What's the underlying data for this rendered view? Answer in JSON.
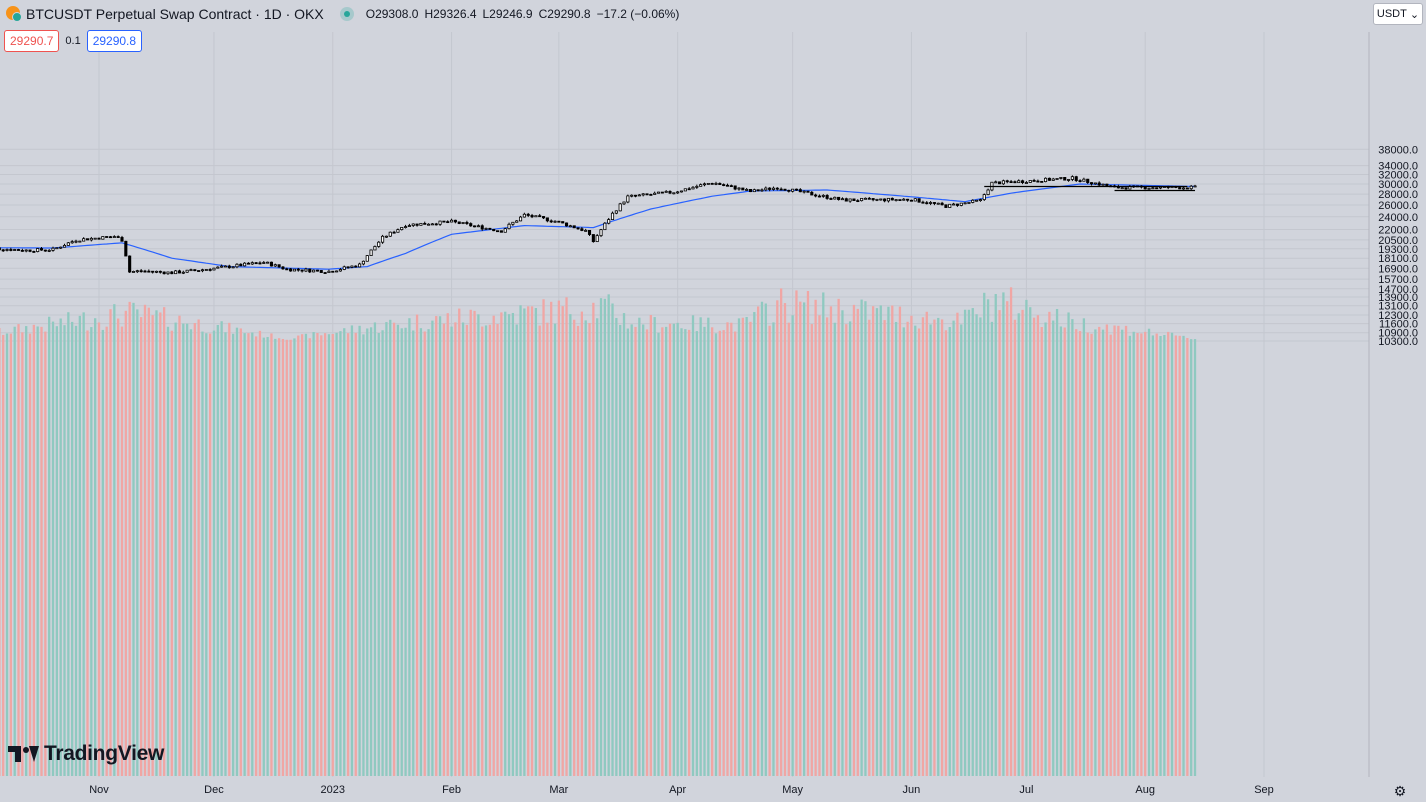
{
  "header": {
    "symbol_title": "BTCUSDT Perpetual Swap Contract · 1D · OKX",
    "ohlc": {
      "open": "O29308.0",
      "high": "H29326.4",
      "low": "L29246.9",
      "close": "C29290.8",
      "change": "−17.2 (−0.06%)"
    }
  },
  "trade": {
    "sell_price": "29290.7",
    "spread": "0.1",
    "buy_price": "29290.8"
  },
  "currency_select": {
    "value": "USDT",
    "arrow": "⌄"
  },
  "branding": {
    "logo_text": "TradingView"
  },
  "icons": {
    "symbol": "bitcoin-coin-icon",
    "status": "market-open-dot-icon",
    "settings": "settings-gear-icon",
    "settings_glyph": "⚙"
  },
  "colors": {
    "background": "#d1d4dc",
    "grid": "#c4c7cf",
    "up": "#26a69a",
    "down": "#ef5350",
    "candle": "#000000",
    "ma": "#2962ff",
    "vol_up": "#8fc9c0",
    "vol_down": "#f0a6a4"
  },
  "price_axis": {
    "ticks": [
      "38000.0",
      "34000.0",
      "32000.0",
      "30000.0",
      "28000.0",
      "26000.0",
      "24000.0",
      "22000.0",
      "20500.0",
      "19300.0",
      "18100.0",
      "16900.0",
      "15700.0",
      "14700.0",
      "13900.0",
      "13100.0",
      "12300.0",
      "11600.0",
      "10900.0",
      "10300.0"
    ]
  },
  "time_axis": {
    "labels": [
      "Nov",
      "Dec",
      "2023",
      "Feb",
      "Mar",
      "Apr",
      "May",
      "Jun",
      "Jul",
      "Aug",
      "Sep"
    ]
  },
  "chart_data": {
    "type": "candlestick",
    "scale": "log",
    "x": [
      "2022-10-01",
      "2023-09-30"
    ],
    "ylim": [
      10300,
      38000
    ],
    "price_path": [
      [
        "2022-10-01",
        19500
      ],
      [
        "2022-10-06",
        19300
      ],
      [
        "2022-10-13",
        19100
      ],
      [
        "2022-10-20",
        19200
      ],
      [
        "2022-10-26",
        20500
      ],
      [
        "2022-11-05",
        21000
      ],
      [
        "2022-11-07",
        20500
      ],
      [
        "2022-11-09",
        16500
      ],
      [
        "2022-11-12",
        16600
      ],
      [
        "2022-11-20",
        16400
      ],
      [
        "2022-11-25",
        16600
      ],
      [
        "2022-12-05",
        17100
      ],
      [
        "2022-12-14",
        17600
      ],
      [
        "2022-12-20",
        16800
      ],
      [
        "2022-12-31",
        16550
      ],
      [
        "2023-01-08",
        17300
      ],
      [
        "2023-01-14",
        20800
      ],
      [
        "2023-01-20",
        22700
      ],
      [
        "2023-02-01",
        23200
      ],
      [
        "2023-02-09",
        22300
      ],
      [
        "2023-02-14",
        21800
      ],
      [
        "2023-02-20",
        24300
      ],
      [
        "2023-02-28",
        23300
      ],
      [
        "2023-03-08",
        21800
      ],
      [
        "2023-03-10",
        20300
      ],
      [
        "2023-03-15",
        24500
      ],
      [
        "2023-03-19",
        27500
      ],
      [
        "2023-03-31",
        28400
      ],
      [
        "2023-04-10",
        30300
      ],
      [
        "2023-04-20",
        28500
      ],
      [
        "2023-04-27",
        29300
      ],
      [
        "2023-05-08",
        27700
      ],
      [
        "2023-05-14",
        26900
      ],
      [
        "2023-06-01",
        27000
      ],
      [
        "2023-06-10",
        25800
      ],
      [
        "2023-06-19",
        26800
      ],
      [
        "2023-06-22",
        30200
      ],
      [
        "2023-07-13",
        31200
      ],
      [
        "2023-07-24",
        29300
      ],
      [
        "2023-08-14",
        29291
      ]
    ],
    "moving_average": [
      [
        "2022-10-01",
        19450
      ],
      [
        "2022-10-20",
        19400
      ],
      [
        "2022-11-07",
        20100
      ],
      [
        "2022-11-20",
        18100
      ],
      [
        "2022-12-05",
        17100
      ],
      [
        "2022-12-31",
        16800
      ],
      [
        "2023-01-10",
        17100
      ],
      [
        "2023-01-20",
        18700
      ],
      [
        "2023-02-01",
        21300
      ],
      [
        "2023-02-20",
        22600
      ],
      [
        "2023-03-10",
        22300
      ],
      [
        "2023-03-25",
        25300
      ],
      [
        "2023-04-10",
        27600
      ],
      [
        "2023-04-20",
        28600
      ],
      [
        "2023-05-10",
        28800
      ],
      [
        "2023-06-01",
        27500
      ],
      [
        "2023-06-15",
        26600
      ],
      [
        "2023-06-28",
        28300
      ],
      [
        "2023-07-15",
        30000
      ],
      [
        "2023-08-14",
        29500
      ]
    ],
    "volume": [
      [
        "2022-10-01",
        10800
      ],
      [
        "2022-11-09",
        13000
      ],
      [
        "2022-12-20",
        10500
      ],
      [
        "2023-01-20",
        12000
      ],
      [
        "2023-03-13",
        13700
      ],
      [
        "2023-03-20",
        12000
      ],
      [
        "2023-04-18",
        11800
      ],
      [
        "2023-04-28",
        14100
      ],
      [
        "2023-06-14",
        12100
      ],
      [
        "2023-06-23",
        14500
      ],
      [
        "2023-07-13",
        12000
      ],
      [
        "2023-07-24",
        11500
      ],
      [
        "2023-08-14",
        10500
      ]
    ],
    "support_lines": [
      {
        "from": "2023-06-20",
        "to": "2023-08-12",
        "price": 29500
      },
      {
        "from": "2023-07-24",
        "to": "2023-08-14",
        "price": 28700
      }
    ]
  }
}
